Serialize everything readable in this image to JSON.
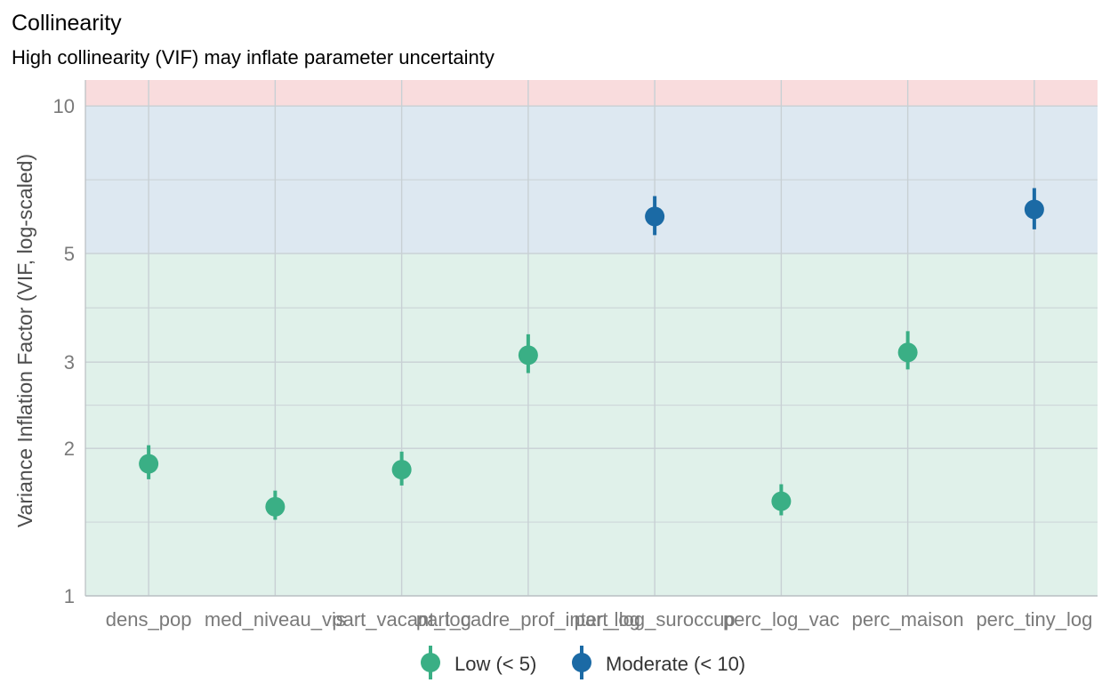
{
  "chart_data": {
    "type": "scatter",
    "title": "Collinearity",
    "subtitle": "High collinearity (VIF) may inflate parameter uncertainty",
    "xlabel": "",
    "ylabel": "Variance Inflation Factor (VIF, log-scaled)",
    "y_scale": "log",
    "ylim": [
      1,
      11.3
    ],
    "yticks": [
      1,
      2,
      3,
      5,
      10
    ],
    "grid": true,
    "bands": [
      {
        "from": 1,
        "to": 5,
        "color": "#e0f1ea"
      },
      {
        "from": 5,
        "to": 10,
        "color": "#dde8f1"
      },
      {
        "from": 10,
        "to": 11.3,
        "color": "#f9dcdd"
      }
    ],
    "categories": [
      "dens_pop",
      "med_niveau_vis",
      "part_vacant_log",
      "part_cadre_prof_inter_log",
      "part_log_suroccup",
      "perc_log_vac",
      "perc_maison",
      "perc_tiny_log"
    ],
    "points": [
      {
        "x": "dens_pop",
        "vif": 1.86,
        "lo": 1.73,
        "hi": 2.03,
        "series": "Low (< 5)"
      },
      {
        "x": "med_niveau_vis",
        "vif": 1.52,
        "lo": 1.43,
        "hi": 1.64,
        "series": "Low (< 5)"
      },
      {
        "x": "part_vacant_log",
        "vif": 1.81,
        "lo": 1.68,
        "hi": 1.97,
        "series": "Low (< 5)"
      },
      {
        "x": "part_cadre_prof_inter_log",
        "vif": 3.1,
        "lo": 2.85,
        "hi": 3.42,
        "series": "Low (< 5)"
      },
      {
        "x": "part_log_suroccup",
        "vif": 5.95,
        "lo": 5.45,
        "hi": 6.55,
        "series": "Moderate (< 10)"
      },
      {
        "x": "perc_log_vac",
        "vif": 1.56,
        "lo": 1.46,
        "hi": 1.69,
        "series": "Low (< 5)"
      },
      {
        "x": "perc_maison",
        "vif": 3.14,
        "lo": 2.9,
        "hi": 3.47,
        "series": "Low (< 5)"
      },
      {
        "x": "perc_tiny_log",
        "vif": 6.15,
        "lo": 5.6,
        "hi": 6.8,
        "series": "Moderate (< 10)"
      }
    ],
    "series": [
      {
        "name": "Low (< 5)",
        "color": "#3aaf85"
      },
      {
        "name": "Moderate (< 10)",
        "color": "#1b6aa5"
      }
    ],
    "legend_position": "bottom",
    "grid_color": "#c8d0d4"
  }
}
